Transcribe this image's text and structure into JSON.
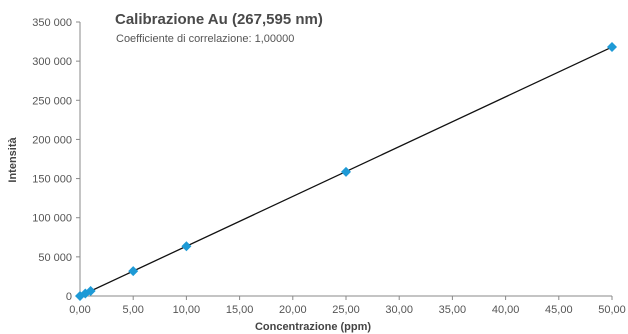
{
  "chart_data": {
    "type": "scatter",
    "title": "Calibrazione Au (267,595 nm)",
    "subtitle": "Coefficiente di correlazione: 1,00000",
    "xlabel": "Concentrazione (ppm)",
    "ylabel": "Intensità",
    "xlim": [
      0,
      50
    ],
    "ylim": [
      0,
      350000
    ],
    "x_ticks": [
      0,
      5,
      10,
      15,
      20,
      25,
      30,
      35,
      40,
      45,
      50
    ],
    "x_tick_labels": [
      "0,00",
      "5,00",
      "10,00",
      "15,00",
      "20,00",
      "25,00",
      "30,00",
      "35,00",
      "40,00",
      "45,00",
      "50,00"
    ],
    "y_ticks": [
      0,
      50000,
      100000,
      150000,
      200000,
      250000,
      300000,
      350000
    ],
    "y_tick_labels": [
      "0",
      "50 000",
      "100 000",
      "150 000",
      "200 000",
      "250 000",
      "300 000",
      "350 000"
    ],
    "grid": false,
    "series": [
      {
        "x": [
          0,
          0.5,
          1,
          5,
          10,
          25,
          50
        ],
        "y": [
          0,
          3200,
          6400,
          31800,
          63500,
          158500,
          318000
        ]
      }
    ],
    "fit_line": {
      "x": [
        0,
        50
      ],
      "y": [
        0,
        318000
      ]
    },
    "colors": {
      "marker": "#1e9ad6",
      "line": "#111111",
      "axis": "#888888"
    }
  }
}
